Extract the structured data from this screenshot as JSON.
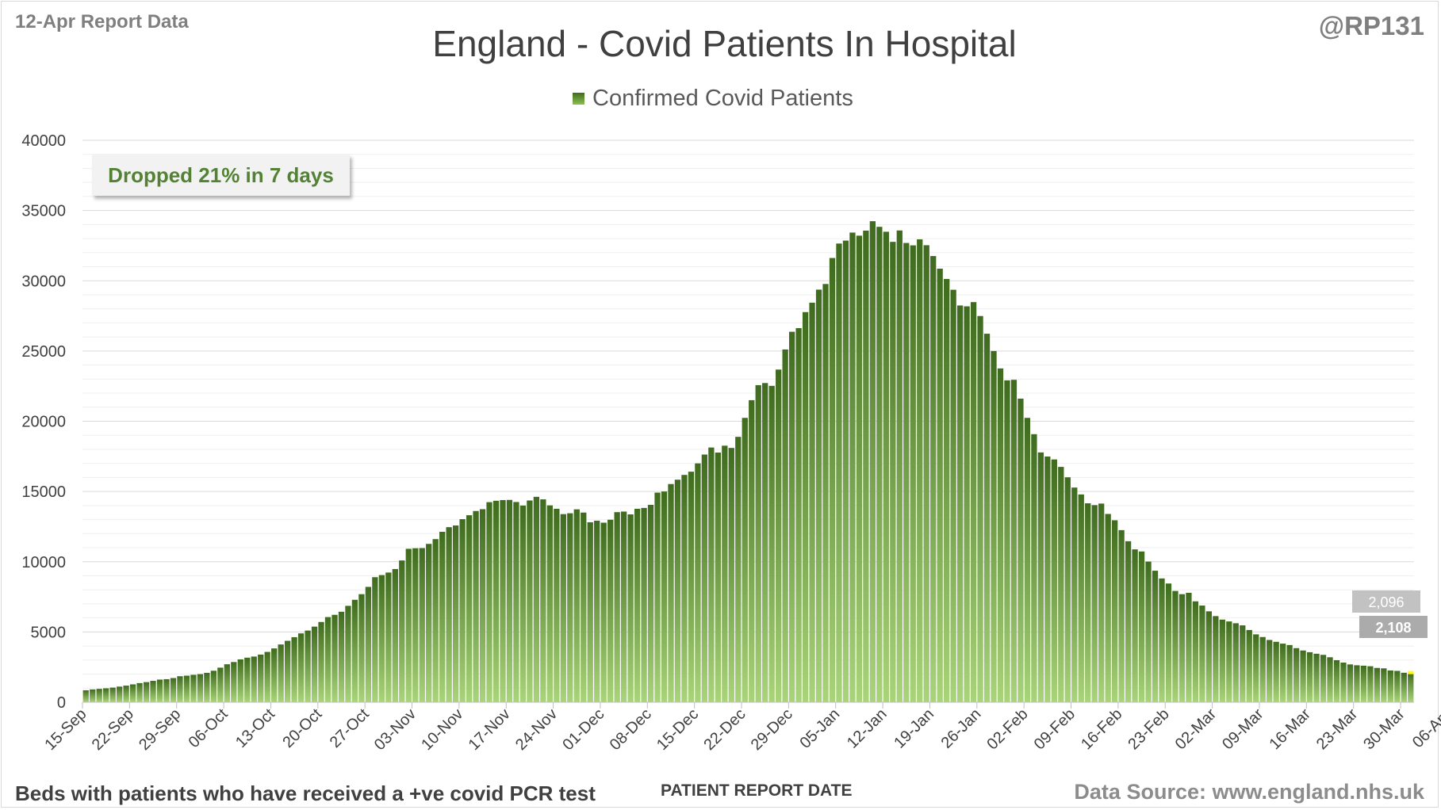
{
  "header": {
    "report_date": "12-Apr Report Data",
    "handle": "@RP131",
    "title": "England - Covid Patients In Hospital"
  },
  "legend": {
    "label": "Confirmed Covid Patients"
  },
  "callout": {
    "text": "Dropped 21% in 7 days"
  },
  "footer": {
    "note": "Beds with patients who have received a +ve covid PCR test",
    "xlabel": "PATIENT REPORT DATE",
    "source": "Data Source: www.england.nhs.uk"
  },
  "colors": {
    "bar_top": "#3f6b1e",
    "bar_bottom": "#a9d47a",
    "highlight": "#ffff00",
    "gridline": "#d9d9d9",
    "text": "#404040"
  },
  "chart_data": {
    "type": "bar",
    "title": "England - Covid Patients In Hospital",
    "xlabel": "PATIENT REPORT DATE",
    "ylabel": "",
    "ylim": [
      0,
      40000
    ],
    "yticks": [
      0,
      5000,
      10000,
      15000,
      20000,
      25000,
      30000,
      35000,
      40000
    ],
    "grid": true,
    "legend_position": "top",
    "series": [
      {
        "name": "Confirmed Covid Patients",
        "values": [
          850,
          910,
          950,
          990,
          1040,
          1110,
          1180,
          1270,
          1360,
          1430,
          1520,
          1610,
          1640,
          1720,
          1850,
          1890,
          1950,
          2000,
          2090,
          2240,
          2460,
          2700,
          2860,
          3050,
          3170,
          3250,
          3390,
          3580,
          3830,
          4110,
          4370,
          4630,
          4900,
          5100,
          5380,
          5710,
          6060,
          6220,
          6440,
          6860,
          7290,
          7690,
          8210,
          8900,
          9050,
          9230,
          9480,
          10090,
          10920,
          10960,
          10970,
          11270,
          11610,
          12130,
          12460,
          12580,
          13030,
          13310,
          13610,
          13740,
          14240,
          14340,
          14390,
          14400,
          14250,
          14000,
          14360,
          14620,
          14440,
          14010,
          13770,
          13390,
          13450,
          13730,
          13500,
          12810,
          12920,
          12780,
          12990,
          13530,
          13570,
          13370,
          13770,
          13830,
          14050,
          14920,
          15000,
          15530,
          15840,
          16180,
          16410,
          17000,
          17630,
          18130,
          17770,
          18260,
          18100,
          18890,
          20240,
          21500,
          22570,
          22720,
          22520,
          23680,
          25110,
          26370,
          26630,
          27770,
          28440,
          29370,
          29770,
          31620,
          32650,
          32860,
          33430,
          33210,
          33570,
          34240,
          33840,
          33490,
          32770,
          33580,
          32690,
          32520,
          32950,
          32530,
          31760,
          30860,
          30130,
          29360,
          28240,
          28180,
          28480,
          27490,
          26230,
          25000,
          23760,
          22910,
          22950,
          21610,
          20240,
          19080,
          17780,
          17490,
          17280,
          16750,
          16010,
          15280,
          14790,
          14160,
          14030,
          14140,
          13400,
          12950,
          12250,
          11460,
          10880,
          10730,
          10010,
          9360,
          8810,
          8450,
          7920,
          7690,
          7790,
          7180,
          6880,
          6470,
          6130,
          5880,
          5750,
          5620,
          5470,
          5140,
          4830,
          4640,
          4430,
          4300,
          4170,
          4070,
          3850,
          3680,
          3560,
          3450,
          3370,
          3200,
          2990,
          2820,
          2690,
          2630,
          2600,
          2560,
          2440,
          2410,
          2260,
          2230,
          2096,
          2108
        ]
      }
    ],
    "x_tick_labels": [
      "15-Sep",
      "22-Sep",
      "29-Sep",
      "06-Oct",
      "13-Oct",
      "20-Oct",
      "27-Oct",
      "03-Nov",
      "10-Nov",
      "17-Nov",
      "24-Nov",
      "01-Dec",
      "08-Dec",
      "15-Dec",
      "22-Dec",
      "29-Dec",
      "05-Jan",
      "12-Jan",
      "19-Jan",
      "26-Jan",
      "02-Feb",
      "09-Feb",
      "16-Feb",
      "23-Feb",
      "02-Mar",
      "09-Mar",
      "16-Mar",
      "23-Mar",
      "30-Mar",
      "06-Apr"
    ],
    "x_tick_every": 7,
    "data_labels": [
      {
        "index": 207,
        "text": "2,096"
      },
      {
        "index": 208,
        "text": "2,108"
      }
    ]
  }
}
